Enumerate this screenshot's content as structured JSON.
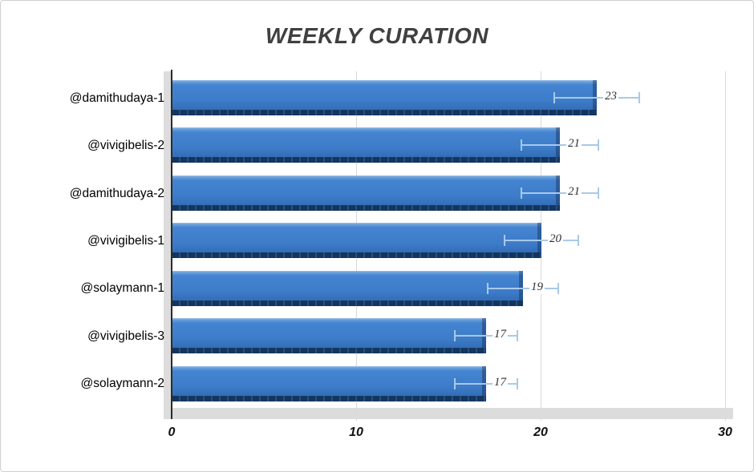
{
  "chart_data": {
    "type": "bar",
    "orientation": "horizontal",
    "title": "WEEKLY CURATION",
    "categories": [
      "@damithudaya-1",
      "@vivigibelis-2",
      "@damithudaya-2",
      "@vivigibelis-1",
      "@solaymann-1",
      "@vivigibelis-3",
      "@solaymann-2"
    ],
    "values": [
      23,
      21,
      21,
      20,
      19,
      17,
      17
    ],
    "data_labels": [
      "23",
      "21",
      "21",
      "20",
      "19",
      "17",
      "17"
    ],
    "error_bars": {
      "type": "percentage",
      "value": 10
    },
    "xlim": [
      0,
      30
    ],
    "x_ticks": [
      0,
      10,
      20,
      30
    ],
    "grid": true,
    "legend": false,
    "style": "3d-horizontal-bar",
    "colors": {
      "bar": "#3d7cc9",
      "bar_highlight": "#9cc0e8",
      "bar_shadow": "#14355e",
      "error_bar": "#a8c9e9",
      "gridline": "#d9d9d9",
      "wall": "#dcdcdc",
      "axis": "#2b2b2b",
      "title": "#404040"
    }
  }
}
